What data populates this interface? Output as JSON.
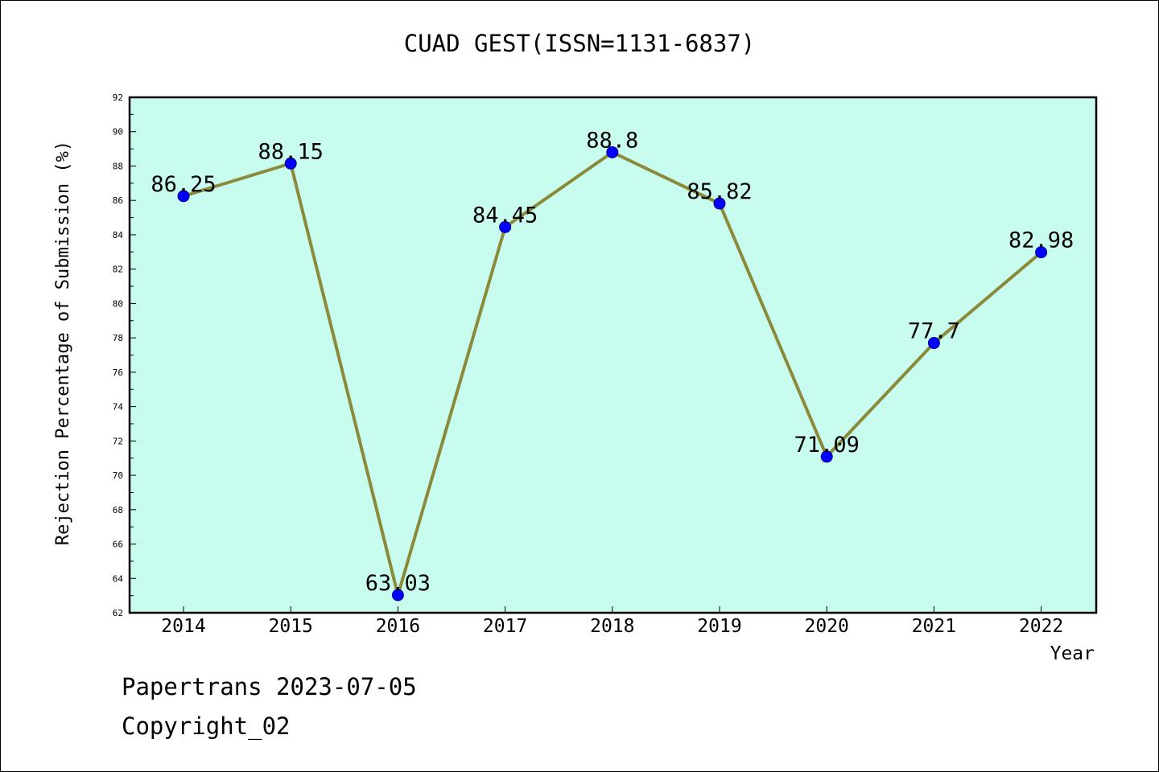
{
  "title": "CUAD GEST(ISSN=1131-6837)",
  "footer": {
    "line1": "Papertrans 2023-07-05",
    "line2": "Copyright_02"
  },
  "colors": {
    "plot_background": "#c8fcee",
    "line": "#8b8a3a",
    "marker": "#0000ff",
    "axis": "#000000"
  },
  "chart_data": {
    "type": "line",
    "title": "CUAD GEST(ISSN=1131-6837)",
    "xlabel": "Year",
    "ylabel": "Rejection Percentage of Submission (%)",
    "categories": [
      "2014",
      "2015",
      "2016",
      "2017",
      "2018",
      "2019",
      "2020",
      "2021",
      "2022"
    ],
    "values": [
      86.25,
      88.15,
      63.03,
      84.45,
      88.8,
      85.82,
      71.09,
      77.7,
      82.98
    ],
    "data_labels": [
      "86.25",
      "88.15",
      "63.03",
      "84.45",
      "88.8",
      "85.82",
      "71.09",
      "77.7",
      "82.98"
    ],
    "ylim": [
      62,
      92
    ],
    "yticks": [
      62,
      64,
      66,
      68,
      70,
      72,
      74,
      76,
      78,
      80,
      82,
      84,
      86,
      88,
      90,
      92
    ],
    "grid": false,
    "legend": "none"
  }
}
